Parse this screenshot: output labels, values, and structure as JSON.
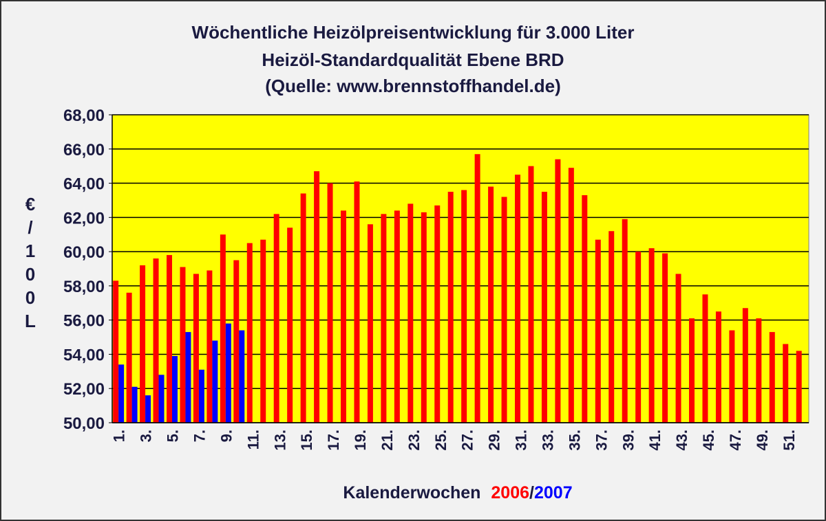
{
  "chart_data": {
    "type": "bar",
    "title": [
      "Wöchentliche Heizölpreisentwicklung für 3.000 Liter",
      "Heizöl-Standardqualität Ebene BRD",
      "(Quelle: www.brennstoffhandel.de)"
    ],
    "y_label": "€/100L",
    "x_label": "Kalenderwochen",
    "x_label_separator": "/",
    "categories": [
      "1.",
      null,
      "3.",
      null,
      "5.",
      null,
      "7.",
      null,
      "9.",
      null,
      "11.",
      null,
      "13.",
      null,
      "15.",
      null,
      "17.",
      null,
      "19.",
      null,
      "21.",
      null,
      "23.",
      null,
      "25.",
      null,
      "27.",
      null,
      "29.",
      null,
      "31.",
      null,
      "33.",
      null,
      "35.",
      null,
      "37.",
      null,
      "39.",
      null,
      "41.",
      null,
      "43.",
      null,
      "45.",
      null,
      "47.",
      null,
      "49.",
      null,
      "51.",
      null
    ],
    "series": [
      {
        "name": "2006",
        "color": "#ff0000",
        "values": [
          58.3,
          57.6,
          59.2,
          59.6,
          59.8,
          59.1,
          58.7,
          58.9,
          61.0,
          59.5,
          60.5,
          60.7,
          62.2,
          61.4,
          63.4,
          64.7,
          64.0,
          62.4,
          64.1,
          61.6,
          62.2,
          62.4,
          62.8,
          62.3,
          62.7,
          63.5,
          63.6,
          65.7,
          63.8,
          63.2,
          64.5,
          65.0,
          63.5,
          65.4,
          64.9,
          63.3,
          60.7,
          61.2,
          61.9,
          60.0,
          60.2,
          59.9,
          58.7,
          56.1,
          57.5,
          56.5,
          55.4,
          56.7,
          56.1,
          55.3,
          54.6,
          54.2
        ]
      },
      {
        "name": "2007",
        "color": "#0000ff",
        "values": [
          53.4,
          52.1,
          51.6,
          52.8,
          53.9,
          55.3,
          53.1,
          54.8,
          55.8,
          55.4,
          null,
          null,
          null,
          null,
          null,
          null,
          null,
          null,
          null,
          null,
          null,
          null,
          null,
          null,
          null,
          null,
          null,
          null,
          null,
          null,
          null,
          null,
          null,
          null,
          null,
          null,
          null,
          null,
          null,
          null,
          null,
          null,
          null,
          null,
          null,
          null,
          null,
          null,
          null,
          null,
          null,
          null
        ]
      }
    ],
    "ylim": [
      50,
      68
    ],
    "yticks": [
      {
        "value": 50,
        "label": "50,00"
      },
      {
        "value": 52,
        "label": "52,00"
      },
      {
        "value": 54,
        "label": "54,00"
      },
      {
        "value": 56,
        "label": "56,00"
      },
      {
        "value": 58,
        "label": "58,00"
      },
      {
        "value": 60,
        "label": "60,00"
      },
      {
        "value": 62,
        "label": "62,00"
      },
      {
        "value": 64,
        "label": "64,00"
      },
      {
        "value": 66,
        "label": "66,00"
      },
      {
        "value": 68,
        "label": "68,00"
      }
    ],
    "grid": true,
    "plot_color": "#ffff00"
  }
}
